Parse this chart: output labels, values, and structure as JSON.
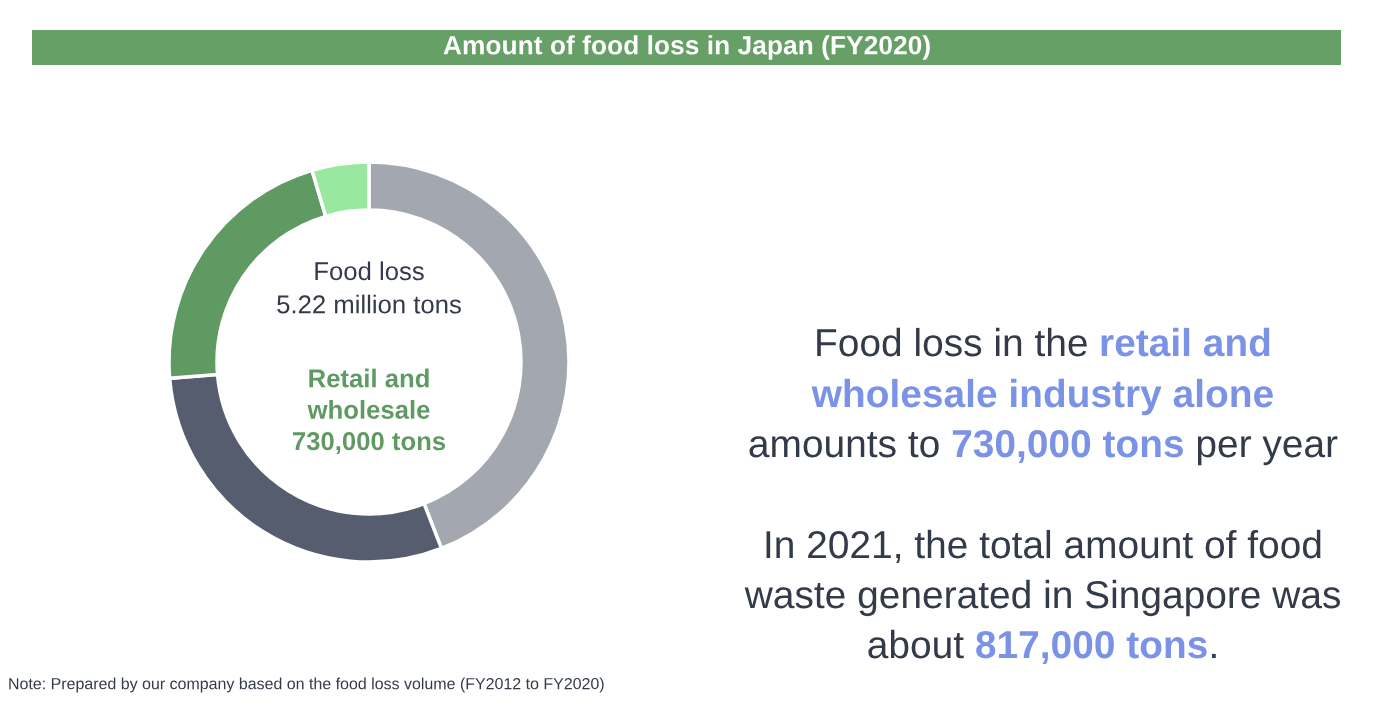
{
  "chart_data": {
    "type": "donut",
    "title": "Amount of food loss in Japan (FY2020)",
    "categories": [
      null,
      null,
      null,
      null
    ],
    "values": [
      44.1,
      29.6,
      21.7,
      4.6
    ],
    "colors": [
      "#a2a7b0",
      "#555d6e",
      "#5f9a62",
      "#98e8a0"
    ],
    "annotations": [
      "Food loss in the",
      "retail and",
      "wholesale industry alone",
      "amounts to",
      "730,000 tons",
      "per year",
      "In 2021, the total amount of food",
      "waste generated in Singapore was",
      "about",
      "817,000 tons",
      ".",
      "Note: Prepared by our company based on the food loss volume (FY2012 to FY2020)",
      "Food loss\n5.22 million tons",
      "Retail and\nwholesale\n730,000 tons"
    ]
  }
}
